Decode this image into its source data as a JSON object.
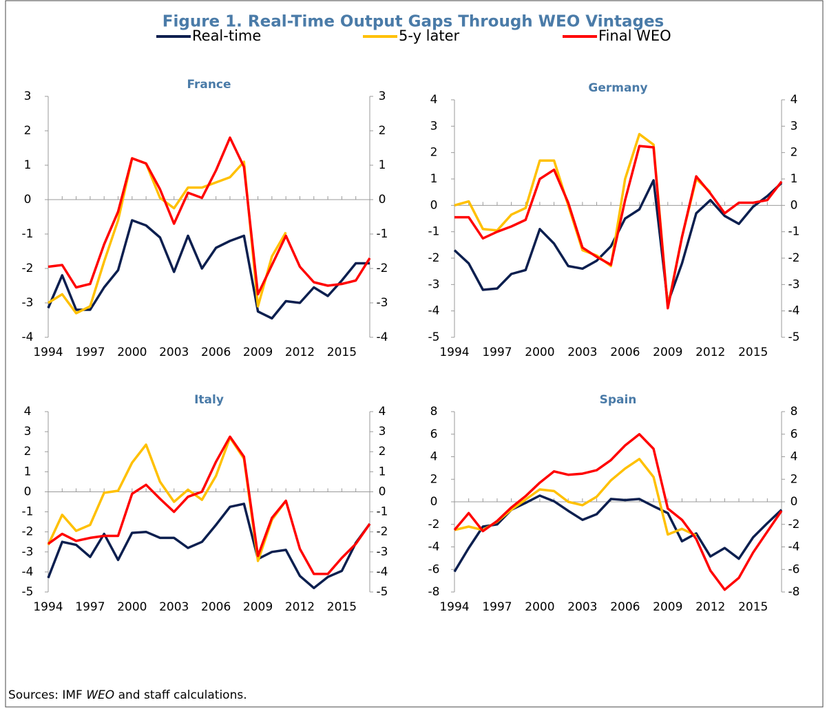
{
  "title": "Figure 1. Real-Time Output Gaps Through WEO Vintages",
  "source": [
    "Sources: IMF ",
    "WEO",
    " and staff calculations."
  ],
  "chart_data": [
    {
      "type": "line",
      "title": "France",
      "x": [
        1994,
        1995,
        1996,
        1997,
        1998,
        1999,
        2000,
        2001,
        2002,
        2003,
        2004,
        2005,
        2006,
        2007,
        2008,
        2009,
        2010,
        2011,
        2012,
        2013,
        2014,
        2015,
        2016,
        2017
      ],
      "xlim": [
        1994,
        2017
      ],
      "xticks": [
        1994,
        1997,
        2000,
        2003,
        2006,
        2009,
        2012,
        2015
      ],
      "ylim": [
        -4,
        3
      ],
      "yticks": [
        -4,
        -3,
        -2,
        -1,
        0,
        1,
        2,
        3
      ],
      "y2lim": [
        -4,
        3
      ],
      "y2ticks": [
        -4,
        -3,
        -2,
        -1,
        0,
        1,
        2,
        3
      ],
      "series": [
        {
          "name": "Real-time",
          "color": "#0c1f4f",
          "values": [
            -3.15,
            -2.2,
            -3.2,
            -3.2,
            -2.55,
            -2.05,
            -0.6,
            -0.75,
            -1.1,
            -2.1,
            -1.05,
            -2.0,
            -1.4,
            -1.2,
            -1.05,
            -3.25,
            -3.45,
            -2.95,
            -3.0,
            -2.55,
            -2.8,
            -2.35,
            -1.85,
            -1.85
          ]
        },
        {
          "name": "5-y later",
          "color": "#ffc000",
          "values": [
            -3.0,
            -2.75,
            -3.3,
            -3.1,
            -1.8,
            -0.6,
            1.2,
            1.05,
            0.05,
            -0.25,
            0.35,
            0.35,
            0.5,
            0.65,
            1.1,
            -3.1,
            -1.65,
            -0.95,
            null,
            null,
            null,
            null,
            null,
            null
          ]
        },
        {
          "name": "Final WEO",
          "color": "#ff0000",
          "values": [
            -1.95,
            -1.9,
            -2.55,
            -2.45,
            -1.3,
            -0.35,
            1.2,
            1.05,
            0.3,
            -0.7,
            0.2,
            0.05,
            0.85,
            1.8,
            0.95,
            -2.75,
            -1.9,
            -1.05,
            -1.95,
            -2.4,
            -2.5,
            -2.45,
            -2.35,
            -1.7
          ]
        }
      ]
    },
    {
      "type": "line",
      "title": "Germany",
      "x": [
        1994,
        1995,
        1996,
        1997,
        1998,
        1999,
        2000,
        2001,
        2002,
        2003,
        2004,
        2005,
        2006,
        2007,
        2008,
        2009,
        2010,
        2011,
        2012,
        2013,
        2014,
        2015,
        2016,
        2017
      ],
      "xlim": [
        1994,
        2017
      ],
      "xticks": [
        1994,
        1997,
        2000,
        2003,
        2006,
        2009,
        2012,
        2015
      ],
      "ylim": [
        -5,
        4
      ],
      "yticks": [
        -5,
        -4,
        -3,
        -2,
        -1,
        0,
        1,
        2,
        3,
        4
      ],
      "y2lim": [
        -5,
        4
      ],
      "y2ticks": [
        -5,
        -4,
        -3,
        -2,
        -1,
        0,
        1,
        2,
        3,
        4
      ],
      "series": [
        {
          "name": "Real-time",
          "color": "#0c1f4f",
          "values": [
            -1.7,
            -2.2,
            -3.2,
            -3.15,
            -2.6,
            -2.45,
            -0.9,
            -1.45,
            -2.3,
            -2.4,
            -2.1,
            -1.55,
            -0.5,
            -0.15,
            0.95,
            -3.7,
            -2.2,
            -0.3,
            0.2,
            -0.4,
            -0.7,
            -0.05,
            0.35,
            0.85
          ]
        },
        {
          "name": "5-y later",
          "color": "#ffc000",
          "values": [
            0.0,
            0.15,
            -0.9,
            -0.95,
            -0.35,
            -0.1,
            1.7,
            1.7,
            0.0,
            -1.7,
            -1.9,
            -2.3,
            1.0,
            2.7,
            2.3,
            -3.85,
            -1.2,
            1.0,
            0.5,
            null,
            null,
            null,
            null,
            null
          ]
        },
        {
          "name": "Final WEO",
          "color": "#ff0000",
          "values": [
            -0.45,
            -0.45,
            -1.25,
            -1.0,
            -0.8,
            -0.55,
            1.0,
            1.35,
            0.1,
            -1.6,
            -1.95,
            -2.25,
            0.2,
            2.25,
            2.2,
            -3.9,
            -1.2,
            1.1,
            0.45,
            -0.3,
            0.1,
            0.1,
            0.2,
            0.9
          ]
        }
      ]
    },
    {
      "type": "line",
      "title": "Italy",
      "x": [
        1994,
        1995,
        1996,
        1997,
        1998,
        1999,
        2000,
        2001,
        2002,
        2003,
        2004,
        2005,
        2006,
        2007,
        2008,
        2009,
        2010,
        2011,
        2012,
        2013,
        2014,
        2015,
        2016,
        2017
      ],
      "xlim": [
        1994,
        2017
      ],
      "xticks": [
        1994,
        1997,
        2000,
        2003,
        2006,
        2009,
        2012,
        2015
      ],
      "ylim": [
        -5,
        4
      ],
      "yticks": [
        -5,
        -4,
        -3,
        -2,
        -1,
        0,
        1,
        2,
        3,
        4
      ],
      "y2lim": [
        -5,
        4
      ],
      "y2ticks": [
        -5,
        -4,
        -3,
        -2,
        -1,
        0,
        1,
        2,
        3,
        4
      ],
      "series": [
        {
          "name": "Real-time",
          "color": "#0c1f4f",
          "values": [
            -4.3,
            -2.5,
            -2.65,
            -3.25,
            -2.1,
            -3.4,
            -2.05,
            -2.0,
            -2.3,
            -2.3,
            -2.8,
            -2.5,
            -1.65,
            -0.75,
            -0.6,
            -3.35,
            -3.0,
            -2.9,
            -4.2,
            -4.8,
            -4.25,
            -3.95,
            -2.55,
            -1.6
          ]
        },
        {
          "name": "5-y later",
          "color": "#ffc000",
          "values": [
            -2.65,
            -1.15,
            -1.95,
            -1.65,
            -0.05,
            0.05,
            1.45,
            2.35,
            0.5,
            -0.5,
            0.1,
            -0.4,
            0.8,
            2.7,
            1.65,
            -3.45,
            -1.4,
            -0.45,
            null,
            null,
            null,
            null,
            null,
            null
          ]
        },
        {
          "name": "Final WEO",
          "color": "#ff0000",
          "values": [
            -2.6,
            -2.1,
            -2.45,
            -2.3,
            -2.2,
            -2.2,
            -0.1,
            0.35,
            -0.35,
            -1.0,
            -0.25,
            0.0,
            1.5,
            2.75,
            1.75,
            -3.2,
            -1.3,
            -0.45,
            -2.85,
            -4.1,
            -4.1,
            -3.3,
            -2.6,
            -1.6
          ]
        }
      ]
    },
    {
      "type": "line",
      "title": "Spain",
      "x": [
        1994,
        1995,
        1996,
        1997,
        1998,
        1999,
        2000,
        2001,
        2002,
        2003,
        2004,
        2005,
        2006,
        2007,
        2008,
        2009,
        2010,
        2011,
        2012,
        2013,
        2014,
        2015,
        2016,
        2017
      ],
      "xlim": [
        1994,
        2017
      ],
      "xticks": [
        1994,
        1997,
        2000,
        2003,
        2006,
        2009,
        2012,
        2015
      ],
      "ylim": [
        -8,
        8
      ],
      "yticks": [
        -8,
        -6,
        -4,
        -2,
        0,
        2,
        4,
        6,
        8
      ],
      "y2lim": [
        -8,
        8
      ],
      "y2ticks": [
        -8,
        -6,
        -4,
        -2,
        0,
        2,
        4,
        6,
        8
      ],
      "series": [
        {
          "name": "Real-time",
          "color": "#0c1f4f",
          "values": [
            -6.2,
            -4.1,
            -2.2,
            -2.0,
            -0.7,
            -0.1,
            0.55,
            0.05,
            -0.8,
            -1.6,
            -1.1,
            0.25,
            0.15,
            0.25,
            -0.4,
            -1.0,
            -3.5,
            -2.8,
            -4.85,
            -4.1,
            -5.05,
            -3.15,
            -1.9,
            -0.7
          ]
        },
        {
          "name": "5-y later",
          "color": "#ffc000",
          "values": [
            -2.5,
            -2.2,
            -2.5,
            -1.75,
            -0.7,
            0.2,
            1.1,
            0.95,
            0.0,
            -0.3,
            0.45,
            1.9,
            2.95,
            3.8,
            2.2,
            -2.9,
            -2.4,
            -3.0,
            null,
            null,
            null,
            null,
            null,
            null
          ]
        },
        {
          "name": "Final WEO",
          "color": "#ff0000",
          "values": [
            -2.5,
            -1.0,
            -2.6,
            -1.7,
            -0.5,
            0.5,
            1.7,
            2.7,
            2.4,
            2.5,
            2.8,
            3.7,
            5.0,
            6.0,
            4.7,
            -0.6,
            -1.6,
            -3.3,
            -6.1,
            -7.8,
            -6.75,
            -4.5,
            -2.65,
            -0.8
          ]
        }
      ]
    }
  ]
}
